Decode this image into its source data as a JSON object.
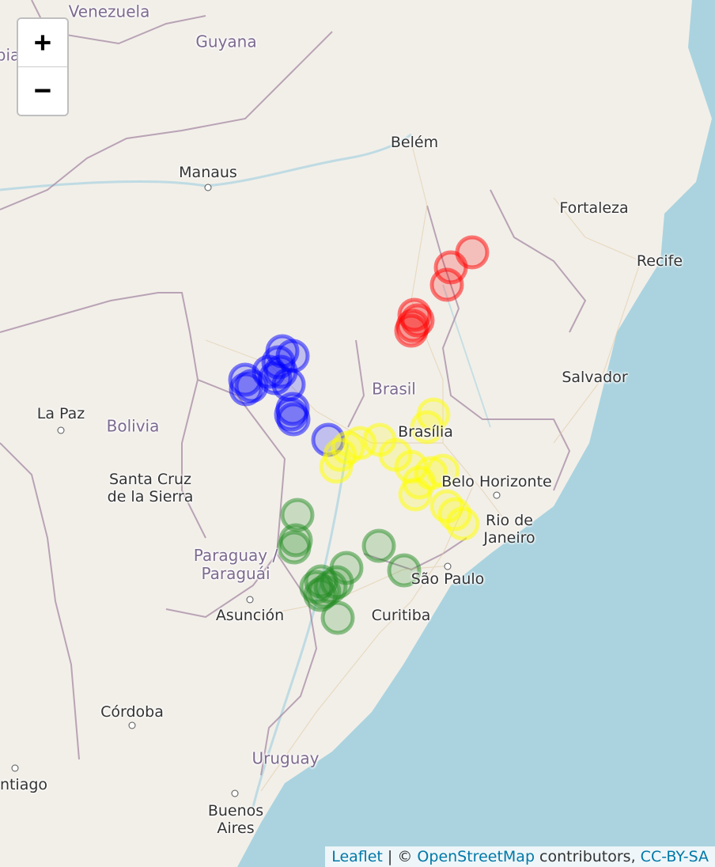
{
  "map": {
    "zoom_in_label": "+",
    "zoom_out_label": "−",
    "attribution": {
      "leaflet": "Leaflet",
      "separator": " | © ",
      "osm": "OpenStreetMap",
      "contributors": " contributors, ",
      "license": "CC-BY-SA"
    }
  },
  "labels": {
    "venezuela": "Venezuela",
    "guyana": "Guyana",
    "bia": "bia",
    "belem": "Belém",
    "manaus": "Manaus",
    "fortaleza": "Fortaleza",
    "recife": "Recife",
    "brasil": "Brasil",
    "salvador": "Salvador",
    "la_paz": "La Paz",
    "bolivia": "Bolivia",
    "brasilia": "Brasília",
    "santa_cruz": "Santa Cruz de la Sierra",
    "belo_horizonte": "Belo Horizonte",
    "rio": "Rio de Janeiro",
    "paraguay": "Paraguay / Paraguái",
    "asuncion": "Asunción",
    "sao_paulo": "São Paulo",
    "curitiba": "Curitiba",
    "cordoba": "Córdoba",
    "uruguay": "Uruguay",
    "santiago": "ntiago",
    "buenos_aires": "Buenos Aires"
  },
  "marker_groups": [
    {
      "color": "#ff0000",
      "count": 7
    },
    {
      "color": "#0000ff",
      "count": 14
    },
    {
      "color": "#ffff00",
      "count": 16
    },
    {
      "color": "#228b22",
      "count": 13
    }
  ]
}
